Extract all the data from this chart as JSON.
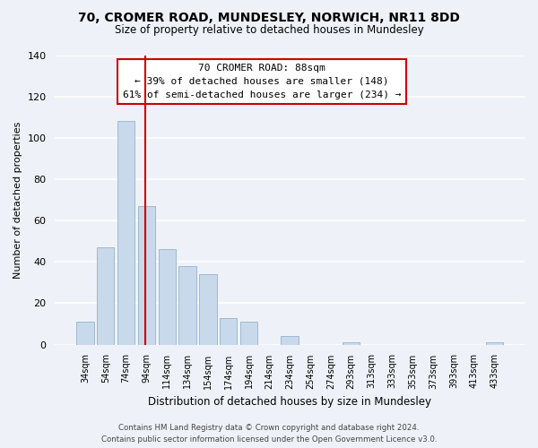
{
  "title": "70, CROMER ROAD, MUNDESLEY, NORWICH, NR11 8DD",
  "subtitle": "Size of property relative to detached houses in Mundesley",
  "xlabel": "Distribution of detached houses by size in Mundesley",
  "ylabel": "Number of detached properties",
  "bar_labels": [
    "34sqm",
    "54sqm",
    "74sqm",
    "94sqm",
    "114sqm",
    "134sqm",
    "154sqm",
    "174sqm",
    "194sqm",
    "214sqm",
    "234sqm",
    "254sqm",
    "274sqm",
    "293sqm",
    "313sqm",
    "333sqm",
    "353sqm",
    "373sqm",
    "393sqm",
    "413sqm",
    "433sqm"
  ],
  "bar_values": [
    11,
    47,
    108,
    67,
    46,
    38,
    34,
    13,
    11,
    0,
    4,
    0,
    0,
    1,
    0,
    0,
    0,
    0,
    0,
    0,
    1
  ],
  "bar_color": "#c8d9ec",
  "bar_edge_color": "#a0b8d0",
  "vline_x": 2.925,
  "vline_color": "#cc0000",
  "ylim": [
    0,
    140
  ],
  "yticks": [
    0,
    20,
    40,
    60,
    80,
    100,
    120,
    140
  ],
  "annotation_title": "70 CROMER ROAD: 88sqm",
  "annotation_line1": "← 39% of detached houses are smaller (148)",
  "annotation_line2": "61% of semi-detached houses are larger (234) →",
  "annotation_box_color": "#ffffff",
  "annotation_box_edge": "#cc0000",
  "footer_line1": "Contains HM Land Registry data © Crown copyright and database right 2024.",
  "footer_line2": "Contains public sector information licensed under the Open Government Licence v3.0.",
  "background_color": "#eef2f8",
  "grid_color": "#ffffff"
}
